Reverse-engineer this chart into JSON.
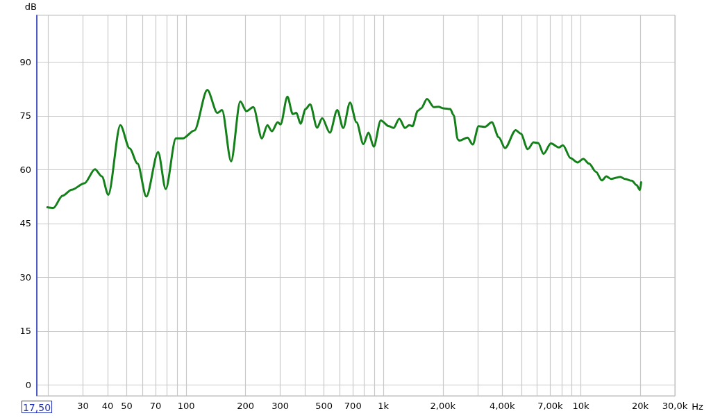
{
  "chart_data": {
    "type": "line",
    "ylabel": "dB",
    "xlabel": "Hz",
    "log": "x",
    "grid": true,
    "marker": "none",
    "line_style": "solid",
    "xlim": [
      17.5,
      30000
    ],
    "ylim": [
      -3,
      103
    ],
    "xticks": [
      {
        "value": 17.5,
        "label": "17,50"
      },
      {
        "value": 20,
        "label": null
      },
      30,
      40,
      50,
      {
        "value": 60,
        "label": null
      },
      70,
      {
        "value": 80,
        "label": null
      },
      {
        "value": 90,
        "label": null
      },
      100,
      200,
      300,
      {
        "value": 400,
        "label": null
      },
      500,
      {
        "value": 600,
        "label": null
      },
      700,
      {
        "value": 800,
        "label": null
      },
      {
        "value": 900,
        "label": null
      },
      {
        "value": 1000,
        "label": "1k"
      },
      {
        "value": 2000,
        "label": "2,00k"
      },
      {
        "value": 3000,
        "label": null
      },
      {
        "value": 4000,
        "label": "4,00k"
      },
      {
        "value": 5000,
        "label": null
      },
      {
        "value": 6000,
        "label": null
      },
      {
        "value": 7000,
        "label": "7,00k"
      },
      {
        "value": 8000,
        "label": null
      },
      {
        "value": 9000,
        "label": null
      },
      {
        "value": 10000,
        "label": "10k"
      },
      {
        "value": 20000,
        "label": "20k"
      },
      {
        "value": 30000,
        "label": "30,0k"
      }
    ],
    "yticks": [
      0,
      15,
      30,
      45,
      60,
      75,
      90
    ],
    "series": [
      {
        "color": "#13801a",
        "x": [
          19.8,
          21.2,
          23.6,
          26.3,
          30.5,
          34.5,
          37.4,
          40.3,
          46.4,
          51.7,
          56.7,
          62.8,
          72.1,
          78.8,
          88.7,
          96.2,
          110,
          128,
          144,
          152,
          169,
          188,
          202,
          219,
          242,
          258,
          272,
          291,
          301,
          326,
          347,
          362,
          380,
          403,
          425,
          461,
          489,
          535,
          583,
          625,
          677,
          730,
          791,
          840,
          893,
          969,
          1066,
          1125,
          1203,
          1286,
          1351,
          1403,
          1493,
          1554,
          1662,
          1803,
          1903,
          2009,
          2178,
          2268,
          2382,
          2427,
          2668,
          2833,
          3036,
          3266,
          3542,
          3842,
          4132,
          4681,
          4968,
          5387,
          5764,
          6086,
          6476,
          7058,
          7757,
          8123,
          8883,
          9630,
          10300,
          11017,
          11944,
          12786,
          13486,
          14242,
          15865,
          16750,
          18158,
          19171,
          19960,
          20227
        ],
        "values": [
          49.5,
          49.3,
          52.7,
          54.4,
          56.2,
          60.1,
          58.1,
          53.0,
          72.4,
          65.9,
          61.7,
          52.5,
          64.9,
          54.6,
          68.7,
          68.7,
          70.9,
          82.2,
          75.8,
          76.6,
          62.3,
          79.0,
          76.3,
          77.4,
          68.7,
          72.4,
          70.7,
          73.2,
          72.6,
          80.3,
          75.5,
          75.8,
          72.8,
          76.9,
          78.2,
          71.7,
          74.3,
          70.3,
          76.6,
          71.6,
          78.7,
          73.2,
          67.1,
          70.3,
          66.4,
          73.7,
          72.1,
          71.6,
          74.2,
          71.6,
          72.4,
          72.1,
          76.4,
          77.1,
          79.7,
          77.4,
          77.5,
          77.1,
          76.9,
          75.2,
          68.4,
          68.1,
          68.9,
          67.0,
          72.1,
          71.9,
          73.2,
          69.0,
          66.0,
          71.0,
          70.0,
          65.7,
          67.6,
          67.4,
          64.4,
          67.3,
          66.2,
          66.8,
          63.2,
          62.0,
          63.0,
          61.7,
          59.4,
          57.0,
          58.1,
          57.4,
          58.0,
          57.4,
          56.9,
          55.7,
          54.3,
          56.5
        ]
      }
    ]
  }
}
